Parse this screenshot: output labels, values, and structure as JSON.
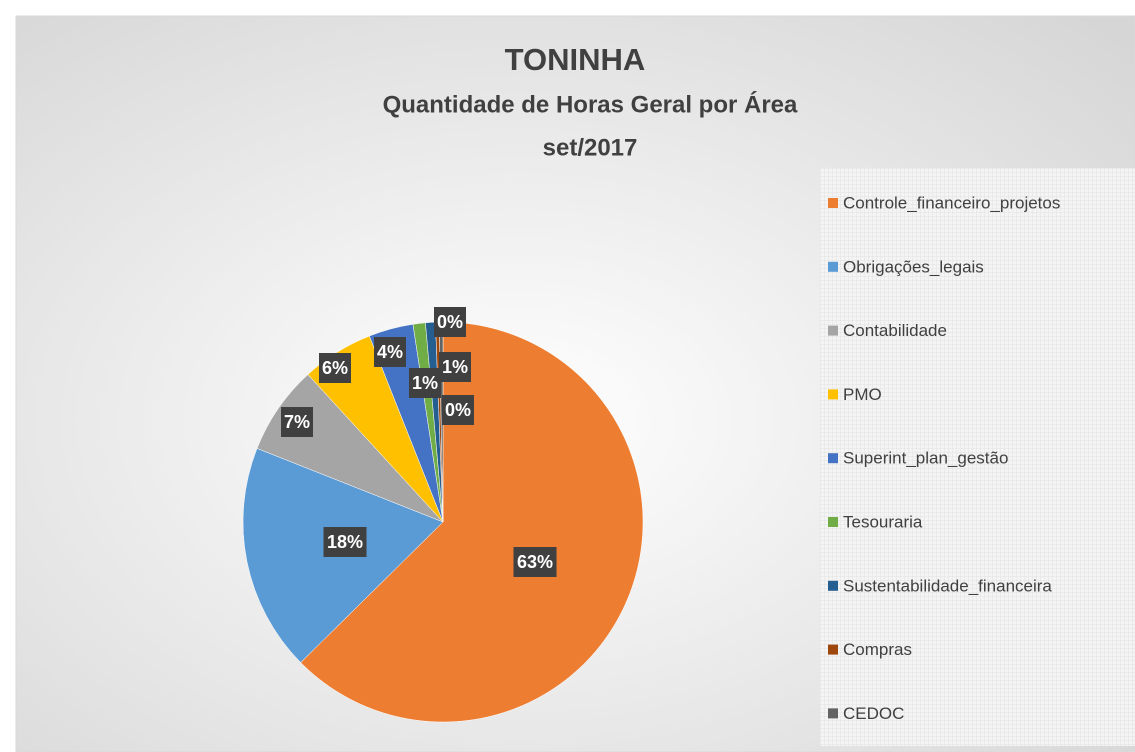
{
  "chart_data": {
    "type": "pie",
    "title": "TONINHA",
    "subtitle": [
      "Quantidade de Horas Geral por Área",
      "set/2017"
    ],
    "categories": [
      "Controle_financeiro_projetos",
      "Obrigações_legais",
      "Contabilidade",
      "PMO",
      "Superint_plan_gestão",
      "Tesouraria",
      "Sustentabilidade_financeira",
      "Compras",
      "CEDOC"
    ],
    "values": [
      62.6,
      18.4,
      7.2,
      5.8,
      3.6,
      1.0,
      0.8,
      0.3,
      0.3
    ],
    "value_labels": [
      "63%",
      "18%",
      "7%",
      "6%",
      "4%",
      "1%",
      "1%",
      "0%",
      "0%"
    ],
    "colors": [
      "#ed7d31",
      "#5b9bd5",
      "#a5a5a5",
      "#ffc000",
      "#4472c4",
      "#70ad47",
      "#255e91",
      "#9e480e",
      "#636363"
    ],
    "legend": "right"
  }
}
